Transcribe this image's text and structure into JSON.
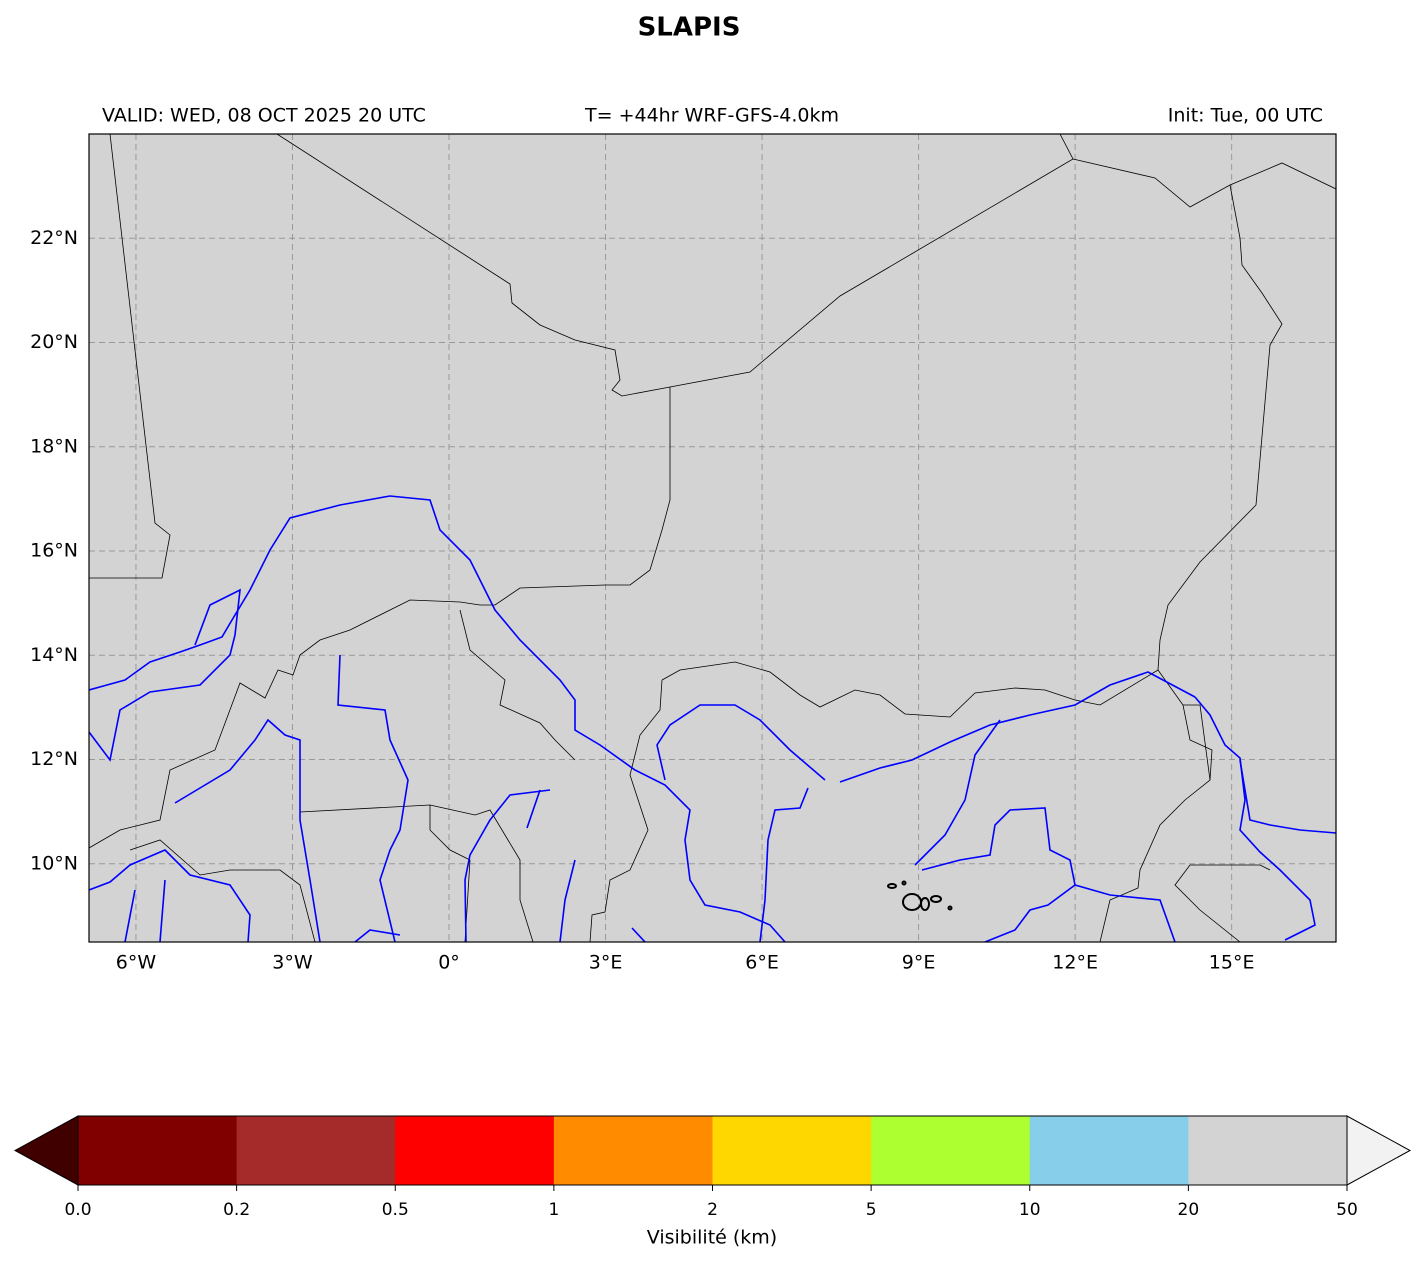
{
  "chart_data": {
    "type": "map",
    "title": "SLAPIS",
    "valid_text": "VALID: WED, 08 OCT 2025 20 UTC",
    "run_text": "T= +44hr WRF-GFS-4.0km",
    "init_text": "Init: Tue, 00 UTC",
    "xlim": [
      -6.9,
      17.0
    ],
    "ylim": [
      8.5,
      24.0
    ],
    "xticks": [
      {
        "value": -6,
        "label": "6°W"
      },
      {
        "value": -3,
        "label": "3°W"
      },
      {
        "value": 0,
        "label": "0°"
      },
      {
        "value": 3,
        "label": "3°E"
      },
      {
        "value": 6,
        "label": "6°E"
      },
      {
        "value": 9,
        "label": "9°E"
      },
      {
        "value": 12,
        "label": "12°E"
      },
      {
        "value": 15,
        "label": "15°E"
      }
    ],
    "yticks": [
      {
        "value": 10,
        "label": "10°N"
      },
      {
        "value": 12,
        "label": "12°N"
      },
      {
        "value": 14,
        "label": "14°N"
      },
      {
        "value": 16,
        "label": "16°N"
      },
      {
        "value": 18,
        "label": "18°N"
      },
      {
        "value": 20,
        "label": "20°N"
      },
      {
        "value": 22,
        "label": "22°N"
      }
    ],
    "grid": true,
    "land_color": "#d3d3d3",
    "colorbar": {
      "label": "Visibilité (km)",
      "ticks": [
        {
          "value": 0,
          "label": "0.0"
        },
        0.2,
        0.5,
        1,
        2,
        5,
        10,
        20,
        50
      ],
      "colors": [
        "#800000",
        "#a52a2a",
        "#ff0000",
        "#ff8c00",
        "#ffd700",
        "#adff2f",
        "#87ceeb",
        "#d3d3d3"
      ],
      "under_color": "#400000",
      "over_color": "#f2f2f2"
    }
  }
}
